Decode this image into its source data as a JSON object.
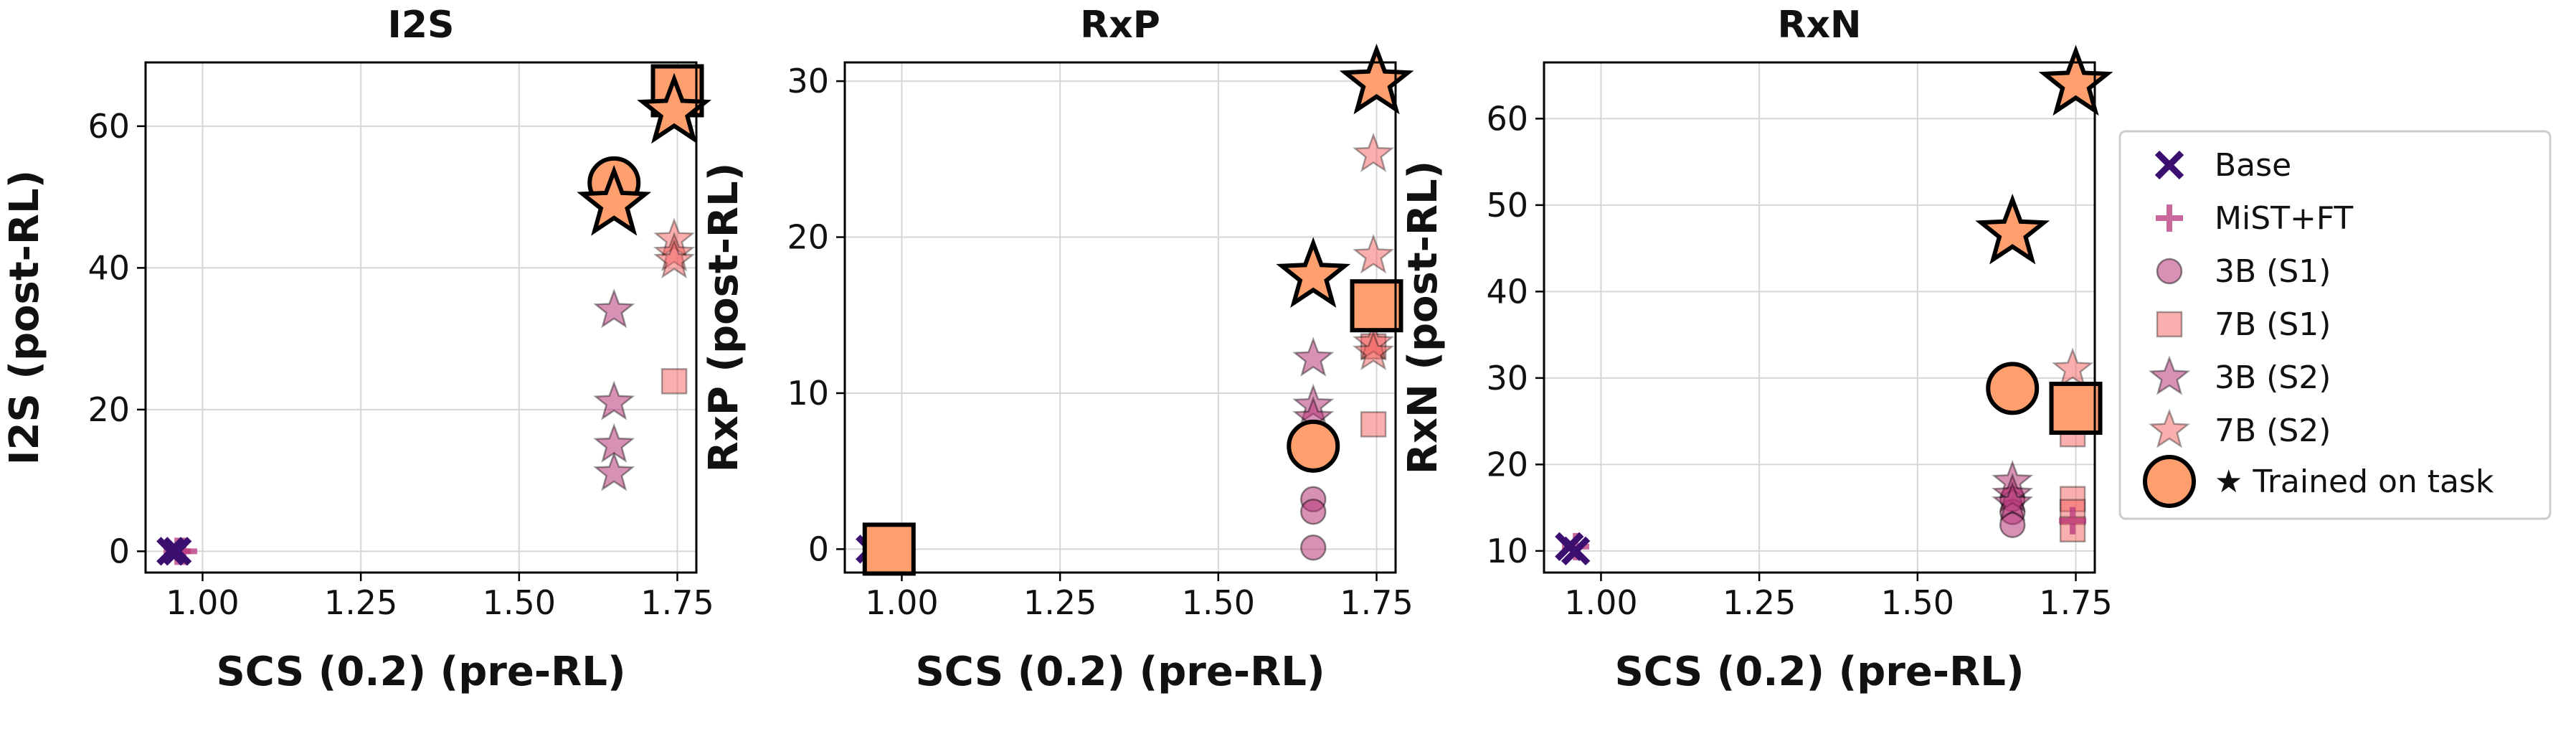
{
  "colors": {
    "base": "#3b0f70",
    "mist": "#b73779",
    "s3b": "#b73779",
    "s7b": "#f1605d",
    "trained": "#fe9f6d",
    "frame": "#000000",
    "grid": "#d6d6d6"
  },
  "legend": {
    "entries": [
      {
        "key": "base",
        "label": "Base",
        "marker": "x"
      },
      {
        "key": "mist",
        "label": "MiST+FT",
        "marker": "plus"
      },
      {
        "key": "s3b_s1",
        "label": "3B (S1)",
        "marker": "circle"
      },
      {
        "key": "s7b_s1",
        "label": "7B (S1)",
        "marker": "square"
      },
      {
        "key": "s3b_s2",
        "label": "3B (S2)",
        "marker": "star-3b"
      },
      {
        "key": "s7b_s2",
        "label": "7B (S2)",
        "marker": "star-7b"
      },
      {
        "key": "trained",
        "label": "★ Trained on task",
        "marker": "trained"
      }
    ]
  },
  "chart_data": [
    {
      "type": "scatter",
      "title": "I2S",
      "xlabel": "SCS (0.2) (pre-RL)",
      "ylabel": "I2S (post-RL)",
      "xlim": [
        0.91,
        1.78
      ],
      "ylim": [
        -3,
        69
      ],
      "xticks": [
        1.0,
        1.25,
        1.5,
        1.75
      ],
      "xtick_labels": [
        "1.00",
        "1.25",
        "1.50",
        "1.75"
      ],
      "yticks": [
        0,
        20,
        40,
        60
      ],
      "ytick_labels": [
        "0",
        "20",
        "40",
        "60"
      ],
      "points": {
        "base": [
          [
            0.95,
            0
          ],
          [
            0.96,
            0
          ]
        ],
        "mist": [
          [
            0.96,
            0
          ],
          [
            0.97,
            0
          ]
        ],
        "s3b_s1": [],
        "s7b_s1": [
          [
            1.745,
            24
          ]
        ],
        "s3b_s2": [
          [
            1.65,
            34
          ],
          [
            1.65,
            21
          ],
          [
            1.65,
            15
          ],
          [
            1.65,
            11
          ]
        ],
        "s7b_s2": [
          [
            1.745,
            44
          ],
          [
            1.745,
            42
          ],
          [
            1.745,
            41
          ]
        ],
        "trained_circle": [
          [
            1.65,
            52
          ]
        ],
        "trained_square": [
          [
            1.75,
            65
          ]
        ],
        "trained_star": [
          [
            1.65,
            49
          ],
          [
            1.745,
            62
          ]
        ]
      }
    },
    {
      "type": "scatter",
      "title": "RxP",
      "xlabel": "SCS (0.2) (pre-RL)",
      "ylabel": "RxP (post-RL)",
      "xlim": [
        0.91,
        1.78
      ],
      "ylim": [
        -1.5,
        31.2
      ],
      "xticks": [
        1.0,
        1.25,
        1.5,
        1.75
      ],
      "xtick_labels": [
        "1.00",
        "1.25",
        "1.50",
        "1.75"
      ],
      "yticks": [
        0,
        10,
        20,
        30
      ],
      "ytick_labels": [
        "0",
        "10",
        "20",
        "30"
      ],
      "points": {
        "base": [
          [
            0.95,
            0
          ]
        ],
        "mist": [
          [
            0.96,
            0
          ]
        ],
        "s3b_s1": [
          [
            1.65,
            3.2
          ],
          [
            1.65,
            2.4
          ],
          [
            1.65,
            0.1
          ]
        ],
        "s7b_s1": [
          [
            1.745,
            8
          ],
          [
            1.745,
            13
          ]
        ],
        "s3b_s2": [
          [
            1.65,
            12.2
          ],
          [
            1.65,
            9.2
          ],
          [
            1.65,
            8.4
          ]
        ],
        "s7b_s2": [
          [
            1.745,
            25.3
          ],
          [
            1.745,
            18.8
          ],
          [
            1.745,
            13.2
          ],
          [
            1.745,
            12.6
          ]
        ],
        "trained_circle": [
          [
            1.65,
            6.6
          ]
        ],
        "trained_square": [
          [
            0.98,
            0
          ],
          [
            1.75,
            15.6
          ]
        ],
        "trained_star": [
          [
            1.65,
            17.5
          ],
          [
            1.75,
            29.9
          ]
        ]
      }
    },
    {
      "type": "scatter",
      "title": "RxN",
      "xlabel": "SCS (0.2) (pre-RL)",
      "ylabel": "RxN (post-RL)",
      "xlim": [
        0.91,
        1.78
      ],
      "ylim": [
        7.5,
        66.5
      ],
      "xticks": [
        1.0,
        1.25,
        1.5,
        1.75
      ],
      "xtick_labels": [
        "1.00",
        "1.25",
        "1.50",
        "1.75"
      ],
      "yticks": [
        10,
        20,
        30,
        40,
        50,
        60
      ],
      "ytick_labels": [
        "10",
        "20",
        "30",
        "40",
        "50",
        "60"
      ],
      "points": {
        "base": [
          [
            0.95,
            10.5
          ],
          [
            0.96,
            10
          ]
        ],
        "mist": [
          [
            0.96,
            10.5
          ],
          [
            1.745,
            13.5
          ]
        ],
        "s3b_s1": [
          [
            1.65,
            16
          ],
          [
            1.65,
            14.5
          ],
          [
            1.65,
            13
          ]
        ],
        "s7b_s1": [
          [
            1.745,
            23.5
          ],
          [
            1.745,
            16
          ],
          [
            1.745,
            14.5
          ],
          [
            1.745,
            12.5
          ]
        ],
        "s3b_s2": [
          [
            1.65,
            18
          ],
          [
            1.65,
            16.5
          ],
          [
            1.65,
            15.5
          ]
        ],
        "s7b_s2": [
          [
            1.745,
            31
          ]
        ],
        "trained_circle": [
          [
            1.65,
            28.8
          ]
        ],
        "trained_square": [
          [
            1.75,
            26.5
          ]
        ],
        "trained_star": [
          [
            1.65,
            46.8
          ],
          [
            1.75,
            64
          ]
        ]
      }
    }
  ]
}
